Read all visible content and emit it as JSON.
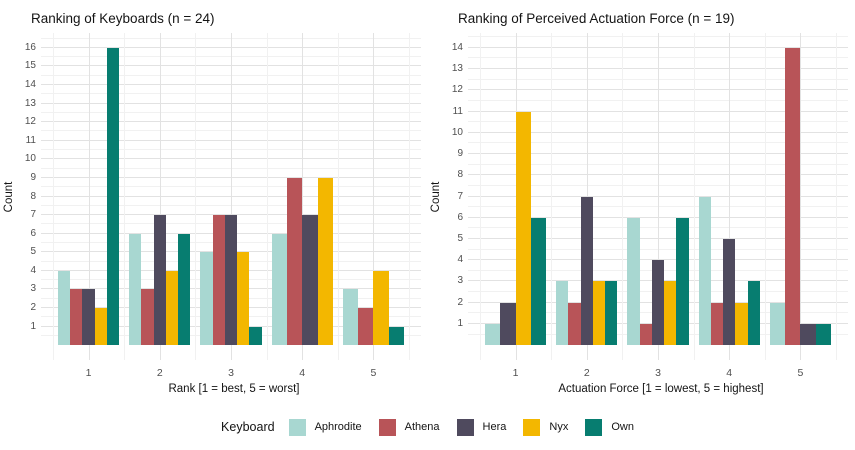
{
  "legend": {
    "title": "Keyboard",
    "items": [
      {
        "label": "Aphrodite",
        "color": "#a8d7d1"
      },
      {
        "label": "Athena",
        "color": "#b85458"
      },
      {
        "label": "Hera",
        "color": "#4f4a5e"
      },
      {
        "label": "Nyx",
        "color": "#f3b700"
      },
      {
        "label": "Own",
        "color": "#077d70"
      }
    ],
    "position": "bottom"
  },
  "chart_data": [
    {
      "type": "bar",
      "title": "Ranking of Keyboards (n = 24)",
      "xlabel": "Rank [1 = best, 5 = worst]",
      "ylabel": "Count",
      "categories": [
        "1",
        "2",
        "3",
        "4",
        "5"
      ],
      "ylim": [
        0,
        16
      ],
      "ytick_step": 1,
      "grid": true,
      "series": [
        {
          "name": "Aphrodite",
          "values": [
            4,
            6,
            5,
            6,
            3
          ]
        },
        {
          "name": "Athena",
          "values": [
            3,
            3,
            7,
            9,
            2
          ]
        },
        {
          "name": "Hera",
          "values": [
            3,
            7,
            7,
            7,
            0
          ]
        },
        {
          "name": "Nyx",
          "values": [
            2,
            4,
            5,
            9,
            4
          ]
        },
        {
          "name": "Own",
          "values": [
            16,
            6,
            1,
            0,
            1
          ]
        }
      ]
    },
    {
      "type": "bar",
      "title": "Ranking of Perceived Actuation Force (n = 19)",
      "xlabel": "Actuation Force [1 = lowest, 5 = highest]",
      "ylabel": "Count",
      "categories": [
        "1",
        "2",
        "3",
        "4",
        "5"
      ],
      "ylim": [
        0,
        14
      ],
      "ytick_step": 1,
      "grid": true,
      "series": [
        {
          "name": "Aphrodite",
          "values": [
            1,
            3,
            6,
            7,
            2
          ]
        },
        {
          "name": "Athena",
          "values": [
            0,
            2,
            1,
            2,
            14
          ]
        },
        {
          "name": "Hera",
          "values": [
            2,
            7,
            4,
            5,
            1
          ]
        },
        {
          "name": "Nyx",
          "values": [
            11,
            3,
            3,
            2,
            0
          ]
        },
        {
          "name": "Own",
          "values": [
            6,
            3,
            6,
            3,
            1
          ]
        }
      ]
    }
  ]
}
